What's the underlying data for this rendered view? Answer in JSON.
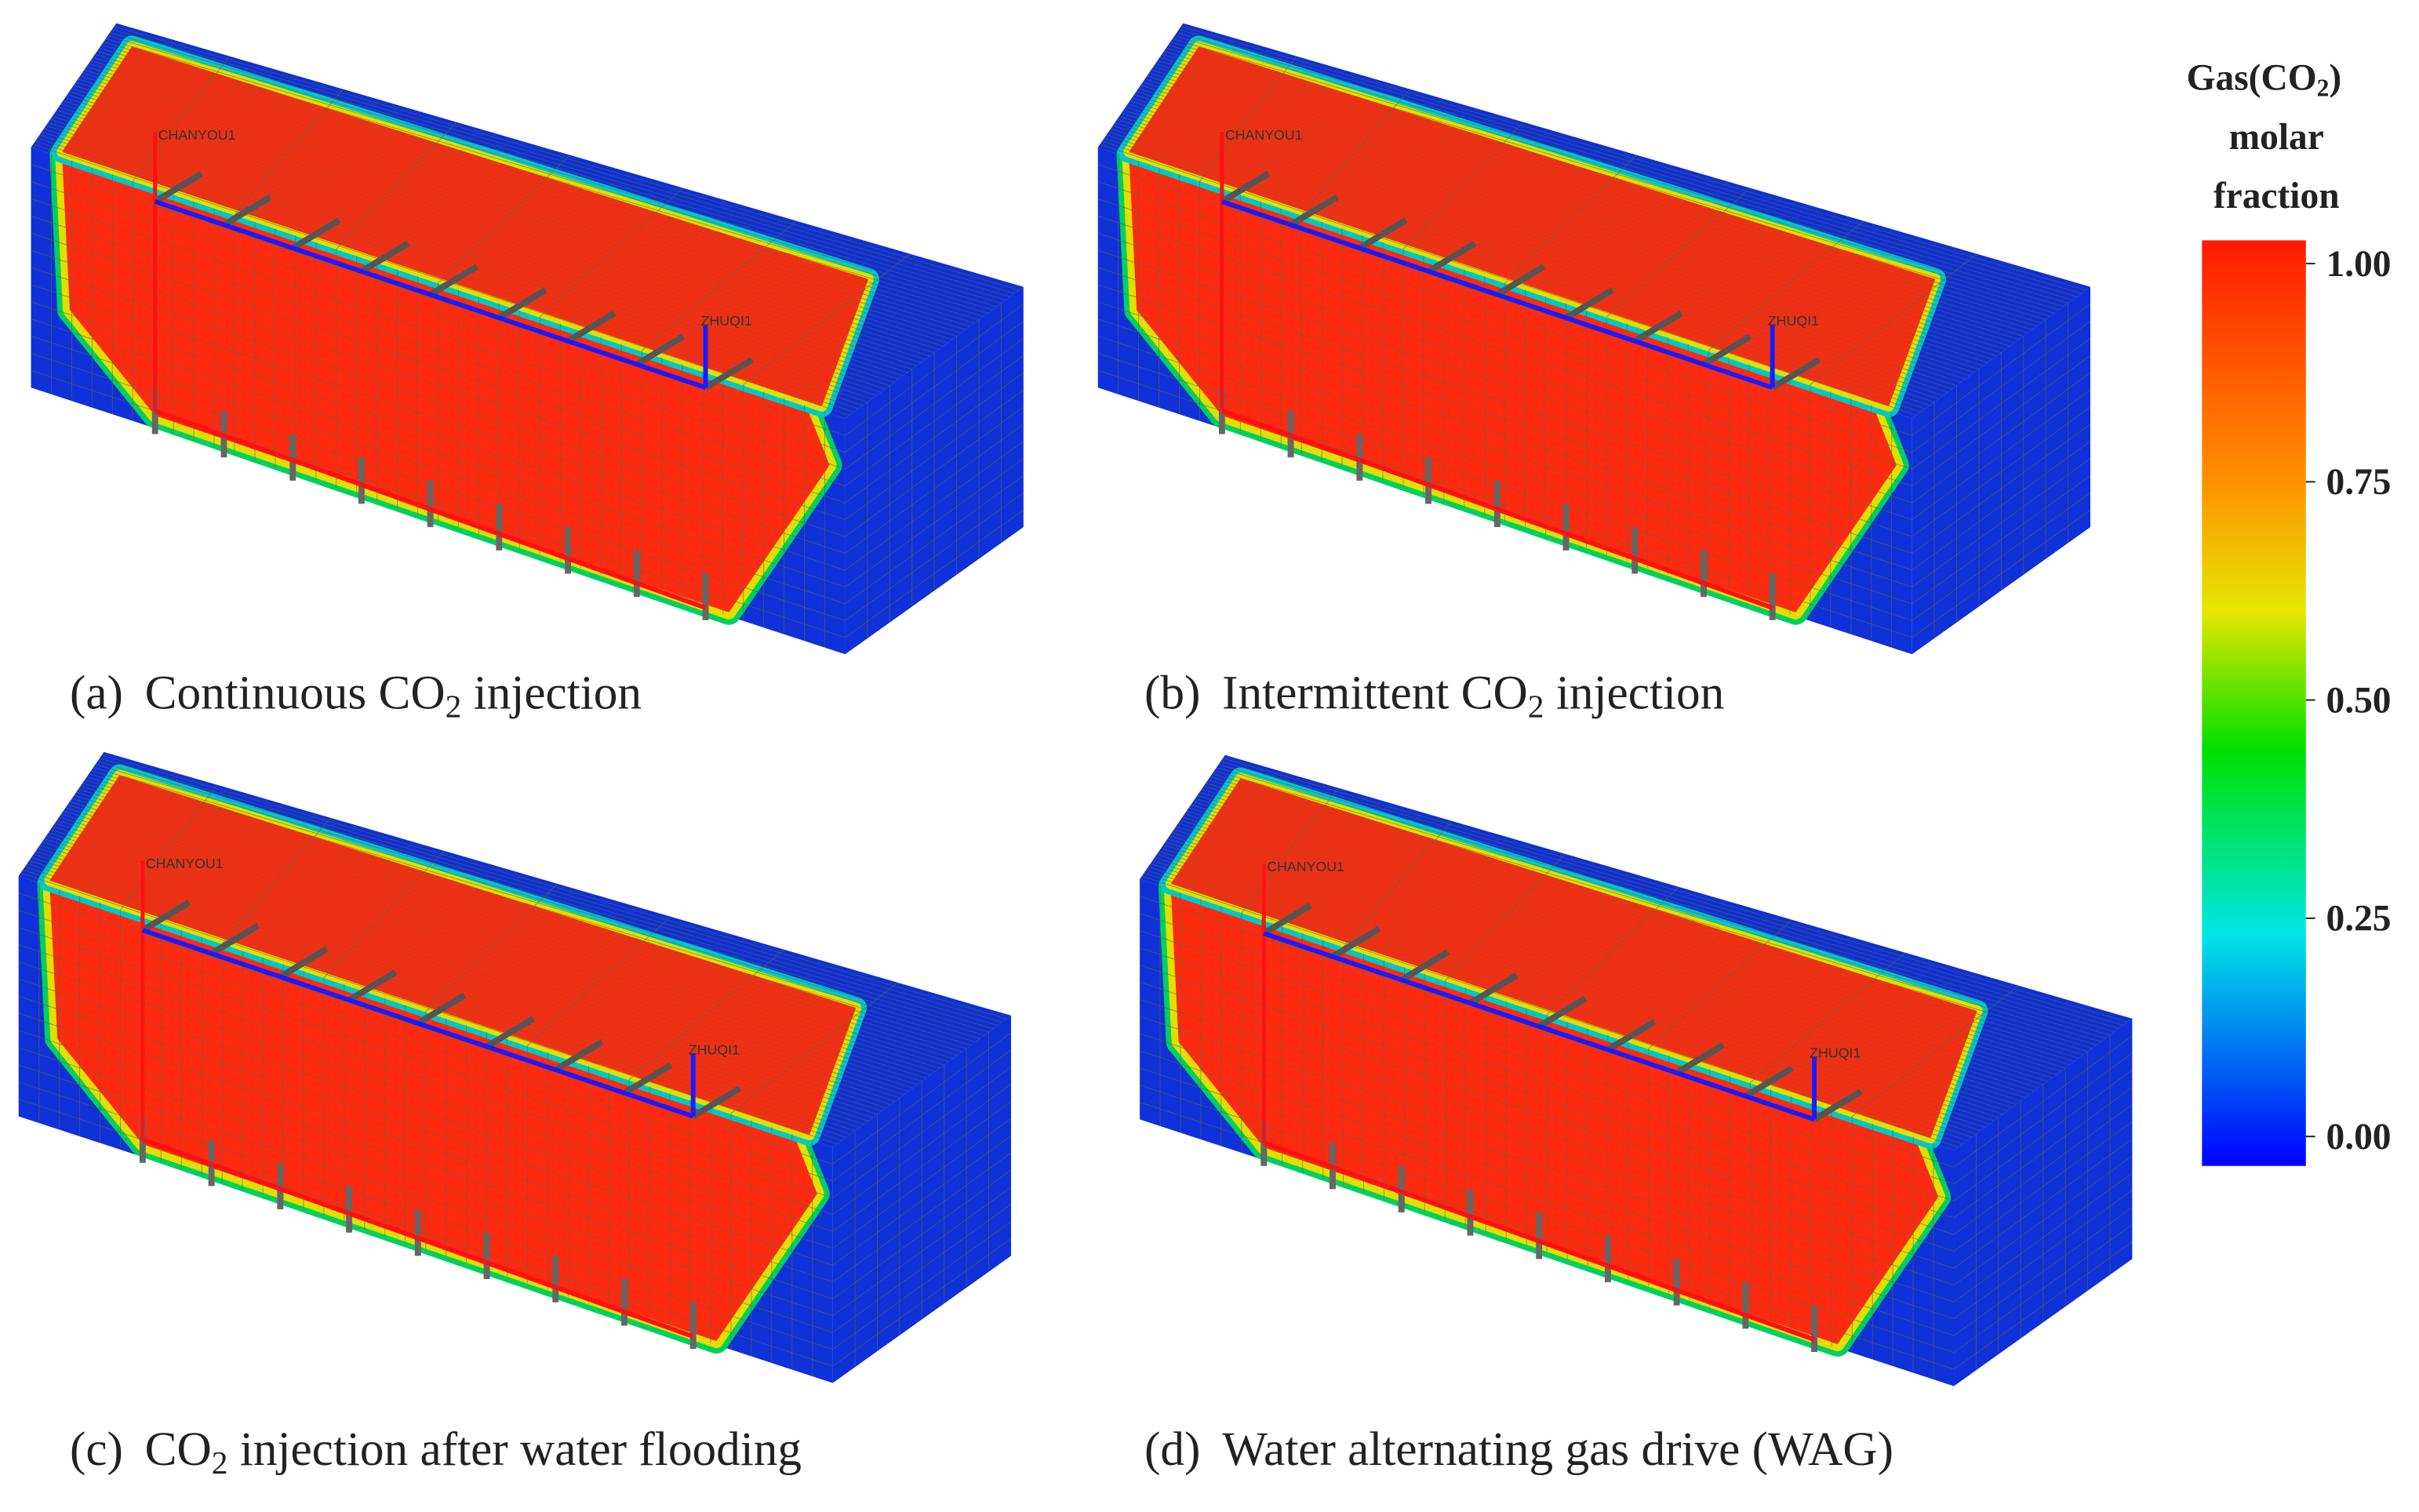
{
  "panels": [
    {
      "label": "(a)",
      "caption": [
        "Continuous CO",
        "2",
        " injection"
      ],
      "wells": [
        "CHANYOU1",
        "ZHUQI1"
      ]
    },
    {
      "label": "(b)",
      "caption": [
        "Intermittent CO",
        "2",
        " injection"
      ],
      "wells": [
        "CHANYOU1",
        "ZHUQI1"
      ]
    },
    {
      "label": "(c)",
      "caption": [
        "CO",
        "2",
        " injection after water flooding"
      ],
      "wells": [
        "CHANYOU1",
        "ZHUQI1"
      ]
    },
    {
      "label": "(d)",
      "caption": [
        "Water alternating gas drive (WAG)"
      ],
      "wells": [
        "CHANYOU1",
        "ZHUQI1"
      ]
    }
  ],
  "colorbar": {
    "title": [
      "Gas(CO",
      "2",
      ")",
      "molar",
      "fraction"
    ],
    "ticks": [
      {
        "value": 1,
        "label": "1.00"
      },
      {
        "value": 0.75,
        "label": "0.75"
      },
      {
        "value": 0.5,
        "label": "0.50"
      },
      {
        "value": 0.25,
        "label": "0.25"
      },
      {
        "value": 0,
        "label": "0.00"
      }
    ]
  }
}
